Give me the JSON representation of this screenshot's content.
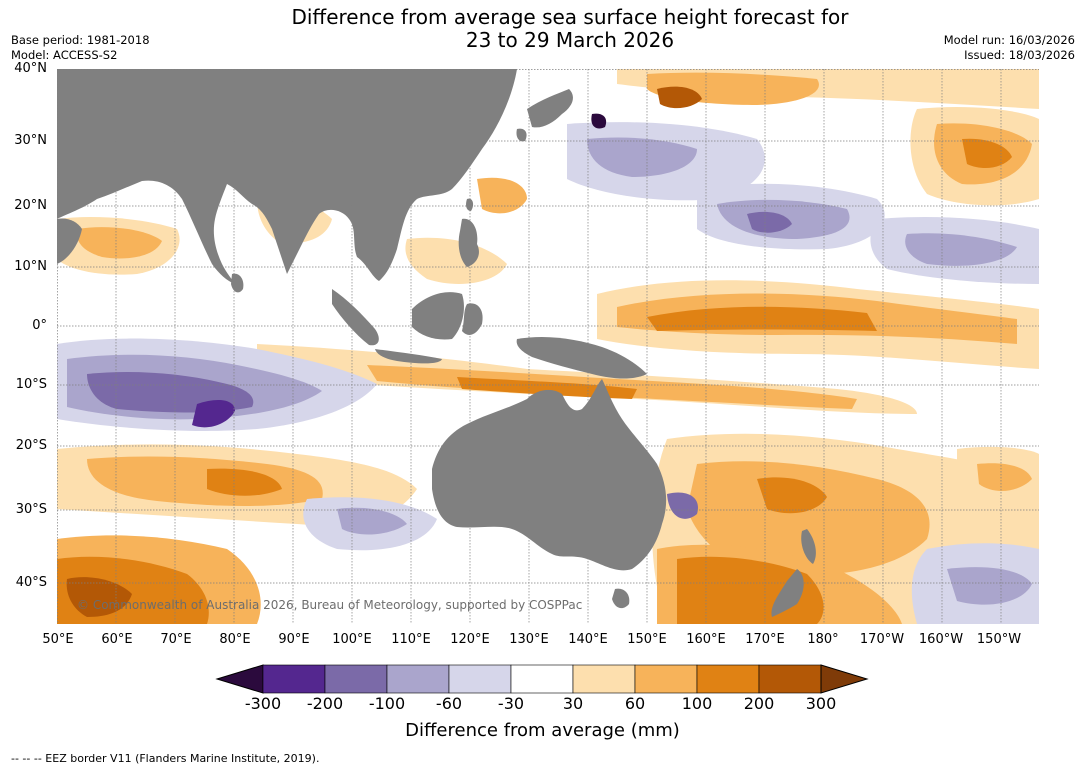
{
  "title": {
    "line1": "Difference from average sea surface height forecast for",
    "line2": "23 to 29 March 2026"
  },
  "meta": {
    "base_period": "Base period: 1981-2018",
    "model": "Model: ACCESS-S2",
    "model_run": "Model run: 16/03/2026",
    "issued": "Issued: 18/03/2026"
  },
  "map": {
    "lat_labels": [
      "40°N",
      "30°N",
      "20°N",
      "10°N",
      "0°",
      "10°S",
      "20°S",
      "30°S",
      "40°S"
    ],
    "lon_labels": [
      "50°E",
      "60°E",
      "70°E",
      "80°E",
      "90°E",
      "100°E",
      "110°E",
      "120°E",
      "130°E",
      "140°E",
      "150°E",
      "160°E",
      "170°E",
      "180°",
      "170°W",
      "160°W",
      "150°W"
    ],
    "copyright": "© Commonwealth of Australia 2026, Bureau of Meteorology, supported by COSPPac",
    "colors": {
      "land": "#808080",
      "ocean": "#ffffff",
      "grid": "#7f7f7f"
    },
    "regions": [
      {
        "name": "north-pacific-positive",
        "category": 5
      },
      {
        "name": "equatorial-pacific-positive",
        "category": 6
      },
      {
        "name": "tropical-indian-negative",
        "category": 3
      },
      {
        "name": "southern-indian-positive",
        "category": 6
      },
      {
        "name": "tasman-sea-positive",
        "category": 6
      }
    ]
  },
  "colorbar": {
    "title": "Difference from average (mm)",
    "ticks": [
      "-300",
      "-200",
      "-100",
      "-60",
      "-30",
      "30",
      "60",
      "100",
      "200",
      "300"
    ],
    "colors": [
      "#2b0a3d",
      "#54278f",
      "#7b6aa8",
      "#aaa5cc",
      "#d6d6ea",
      "#ffffff",
      "#fddfae",
      "#f7b35a",
      "#e08214",
      "#b35806",
      "#7f3b08"
    ]
  },
  "footnote": "-- -- -- EEZ border V11 (Flanders Marine Institute, 2019)."
}
